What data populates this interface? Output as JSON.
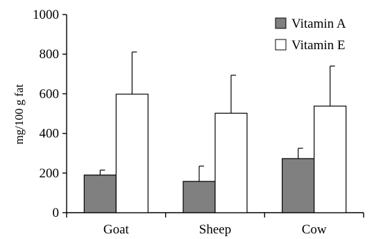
{
  "chart_data": {
    "type": "bar",
    "title": "",
    "xlabel": "",
    "ylabel": "mg/100 g fat",
    "categories": [
      "Goat",
      "Sheep",
      "Cow"
    ],
    "ylim": [
      0,
      1000
    ],
    "yticks": [
      0,
      200,
      400,
      600,
      800,
      1000
    ],
    "grid": false,
    "legend_position": "top-right",
    "series": [
      {
        "name": "Vitamin A",
        "color": "#808080",
        "values": [
          190,
          158,
          273
        ],
        "error_upper": [
          25,
          77,
          52
        ]
      },
      {
        "name": "Vitamin E",
        "color": "#ffffff",
        "values": [
          598,
          502,
          538
        ],
        "error_upper": [
          213,
          192,
          202
        ]
      }
    ]
  }
}
